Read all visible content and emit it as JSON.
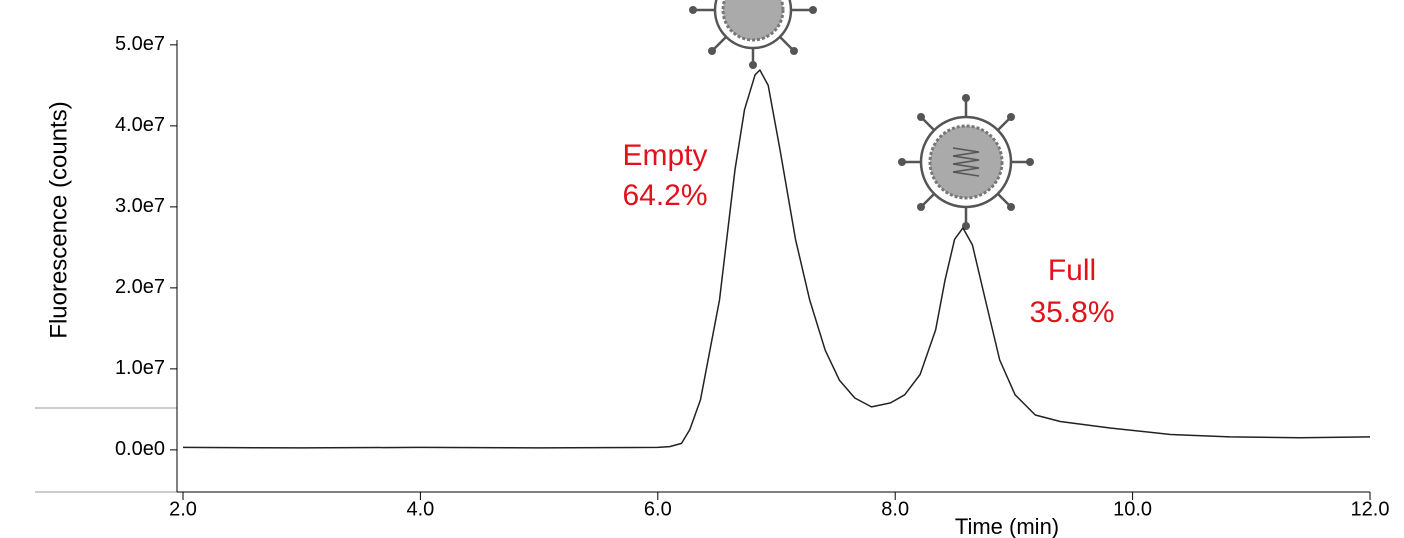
{
  "chart_data": {
    "type": "line",
    "y_label": "Fluorescence (counts)",
    "x_label": "Time (min)",
    "annotations": [
      "Empty",
      "64.2%",
      "Full",
      "35.8%"
    ],
    "color": "#222222",
    "x": [
      2.0,
      3.0,
      4.0,
      5.0,
      6.0,
      6.1,
      6.2,
      6.27,
      6.36,
      6.52,
      6.65,
      6.73,
      6.82,
      6.86,
      6.93,
      7.03,
      7.16,
      7.28,
      7.41,
      7.53,
      7.66,
      7.8,
      7.96,
      8.08,
      8.21,
      8.34,
      8.42,
      8.5,
      8.57,
      8.65,
      8.76,
      8.88,
      9.01,
      9.18,
      9.39,
      9.81,
      10.32,
      10.82,
      11.41,
      12.0
    ],
    "values": [
      300000,
      250000,
      300000,
      250000,
      300000,
      400000,
      800000,
      2500000,
      6200000,
      18500000,
      34600000,
      42000000,
      46300000,
      46900000,
      45000000,
      37000000,
      26000000,
      18500000,
      12300000,
      8600000,
      6400000,
      5300000,
      5800000,
      6800000,
      9300000,
      14800000,
      21000000,
      26000000,
      27400000,
      25300000,
      18500000,
      11100000,
      6800000,
      4300000,
      3500000,
      2700000,
      1900000,
      1600000,
      1500000,
      1600000
    ],
    "xlim": [
      2.0,
      12.0
    ],
    "xticks": [
      {
        "value": 2,
        "label": "2.0"
      },
      {
        "value": 4,
        "label": "4.0"
      },
      {
        "value": 6,
        "label": "6.0"
      },
      {
        "value": 8,
        "label": "8.0"
      },
      {
        "value": 10,
        "label": "10.0"
      },
      {
        "value": 12,
        "label": "12.0"
      }
    ],
    "ylim": [
      -5200000,
      50600000
    ],
    "yticks": [
      {
        "value": 0,
        "label": "0.0e0"
      },
      {
        "value": 10000000,
        "label": "1.0e7"
      },
      {
        "value": 20000000,
        "label": "2.0e7"
      },
      {
        "value": 30000000,
        "label": "3.0e7"
      },
      {
        "value": 40000000,
        "label": "4.0e7"
      },
      {
        "value": 50000000,
        "label": "5.0e7"
      }
    ]
  }
}
